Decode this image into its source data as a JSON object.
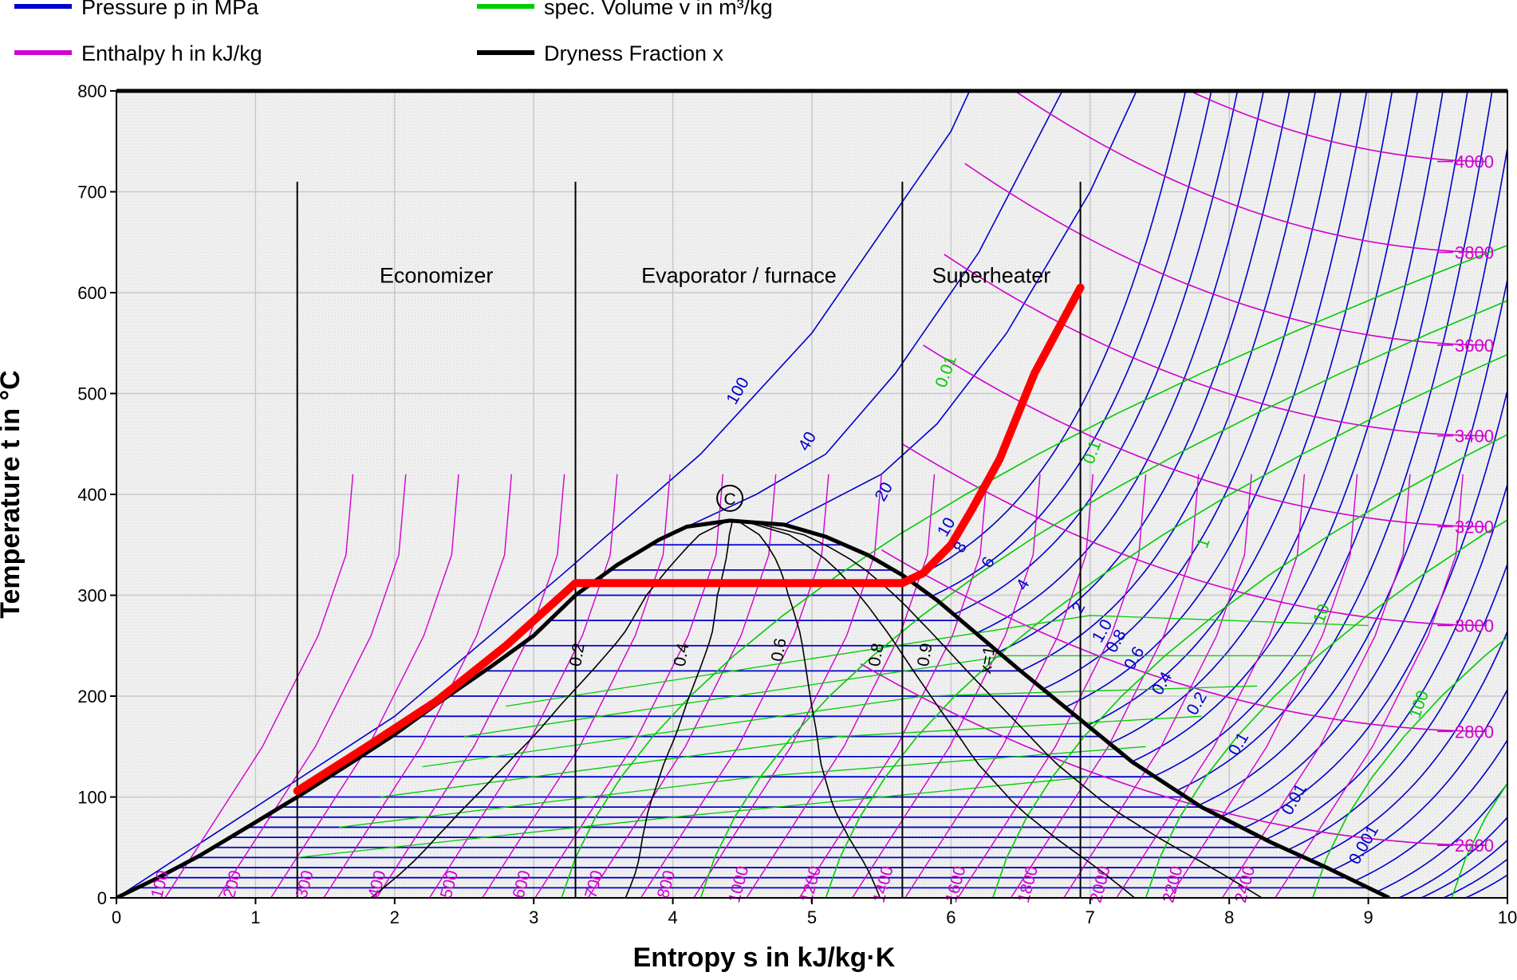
{
  "chart_data": {
    "type": "line",
    "title": "",
    "xlabel": "Entropy s in kJ/kg·K",
    "ylabel": "Temperature t in °C",
    "xlim": [
      0,
      10
    ],
    "ylim": [
      0,
      800
    ],
    "grid": true,
    "x_ticks": [
      "0",
      "1",
      "2",
      "3",
      "4",
      "5",
      "6",
      "7",
      "8",
      "9",
      "10"
    ],
    "y_ticks": [
      "0",
      "100",
      "200",
      "300",
      "400",
      "500",
      "600",
      "700",
      "800"
    ],
    "legend": {
      "placement": "top",
      "entries": [
        {
          "label": "Pressure p in MPa",
          "color": "#0000cc"
        },
        {
          "label": "spec. Volume v in m³/kg",
          "color": "#00cc00"
        },
        {
          "label": "Enthalpy h in kJ/kg",
          "color": "#d000d0"
        },
        {
          "label": "Dryness Fraction x",
          "color": "#000000"
        }
      ]
    },
    "regions": [
      {
        "label": "Economizer",
        "s_from": 1.3,
        "s_to": 3.3
      },
      {
        "label": "Evaporator / furnace",
        "s_from": 3.3,
        "s_to": 5.65
      },
      {
        "label": "Superheater",
        "s_from": 5.65,
        "s_to": 6.93
      }
    ],
    "region_boundaries_s": [
      1.3,
      3.3,
      5.65,
      6.93
    ],
    "region_boundary_top_t": 710,
    "critical_point": {
      "label": "C",
      "s": 4.41,
      "t": 374
    },
    "saturation_dome": {
      "liquid": [
        [
          0,
          0
        ],
        [
          0.3,
          20
        ],
        [
          0.6,
          42
        ],
        [
          1.0,
          75
        ],
        [
          1.3,
          100
        ],
        [
          1.7,
          135
        ],
        [
          2.0,
          162
        ],
        [
          2.3,
          192
        ],
        [
          2.7,
          230
        ],
        [
          3.0,
          260
        ],
        [
          3.3,
          300
        ],
        [
          3.6,
          330
        ],
        [
          3.9,
          355
        ],
        [
          4.1,
          368
        ],
        [
          4.41,
          374
        ]
      ],
      "vapor": [
        [
          4.41,
          374
        ],
        [
          4.8,
          370
        ],
        [
          5.1,
          358
        ],
        [
          5.4,
          340
        ],
        [
          5.65,
          320
        ],
        [
          5.9,
          295
        ],
        [
          6.2,
          260
        ],
        [
          6.5,
          225
        ],
        [
          6.9,
          180
        ],
        [
          7.3,
          135
        ],
        [
          7.8,
          90
        ],
        [
          8.3,
          55
        ],
        [
          8.7,
          30
        ],
        [
          9.15,
          0
        ]
      ]
    },
    "cycle_path": {
      "color": "#ff0000",
      "points": [
        [
          1.3,
          106
        ],
        [
          1.8,
          150
        ],
        [
          2.3,
          195
        ],
        [
          2.8,
          250
        ],
        [
          3.3,
          312
        ],
        [
          5.65,
          312
        ],
        [
          5.8,
          322
        ],
        [
          6.0,
          350
        ],
        [
          6.15,
          385
        ],
        [
          6.35,
          435
        ],
        [
          6.6,
          520
        ],
        [
          6.93,
          605
        ]
      ]
    },
    "quality_lines": [
      "0.2",
      "0.4",
      "0.6",
      "0.8",
      "0.9",
      "x=1"
    ],
    "pressure_labels": [
      "100",
      "40",
      "20",
      "10",
      "8",
      "6",
      "4",
      "2",
      "1.0",
      "0.8",
      "0.6",
      "0.4",
      "0.2",
      "0.1",
      "0.01",
      "0.001"
    ],
    "volume_labels": [
      "0.01",
      "0.1",
      "1",
      "10",
      "100"
    ],
    "enthalpy_labels_right": [
      "4000",
      "3800",
      "3600",
      "3400",
      "3200",
      "3000",
      "2800",
      "2600"
    ],
    "enthalpy_labels_bottom": [
      "100",
      "200",
      "300",
      "400",
      "500",
      "600",
      "700",
      "800",
      "1000",
      "1200",
      "1400",
      "1600",
      "1800",
      "2000",
      "2200",
      "2400"
    ]
  }
}
